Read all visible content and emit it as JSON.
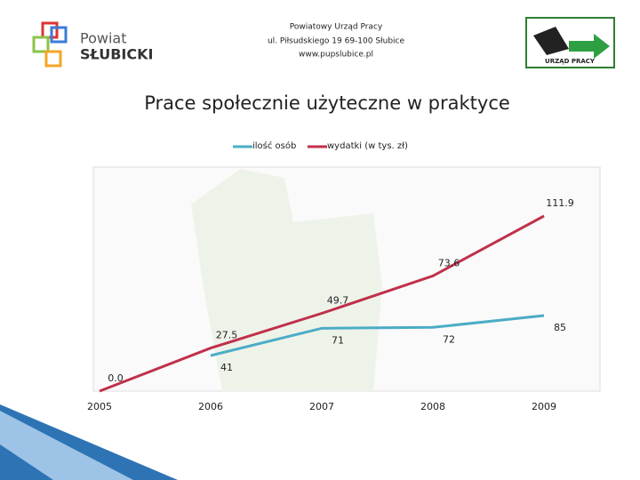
{
  "header": {
    "logo_left": [
      "Powiat",
      "SŁUBICKI"
    ],
    "lines": [
      "Powiatowy Urząd Pracy",
      "ul. Piłsudskiego 19 69-100 Słubice",
      "www.pupslubice.pl"
    ],
    "logo_right": "URZĄD PRACY"
  },
  "chart_data": {
    "type": "line",
    "title": "Prace społecznie użyteczne w praktyce",
    "categories": [
      "2005",
      "2006",
      "2007",
      "2008",
      "2009"
    ],
    "series": [
      {
        "name": "ilość osób",
        "color": "#4bacc6",
        "values": [
          null,
          41,
          71,
          72,
          85
        ]
      },
      {
        "name": "wydatki (w tys. zł)",
        "color": "#c0304a",
        "values": [
          0,
          27.5,
          49.7,
          73.6,
          111.9
        ],
        "value_labels": [
          "0.0",
          "27.5",
          "49.7",
          "73.6",
          "111.9"
        ]
      }
    ]
  }
}
